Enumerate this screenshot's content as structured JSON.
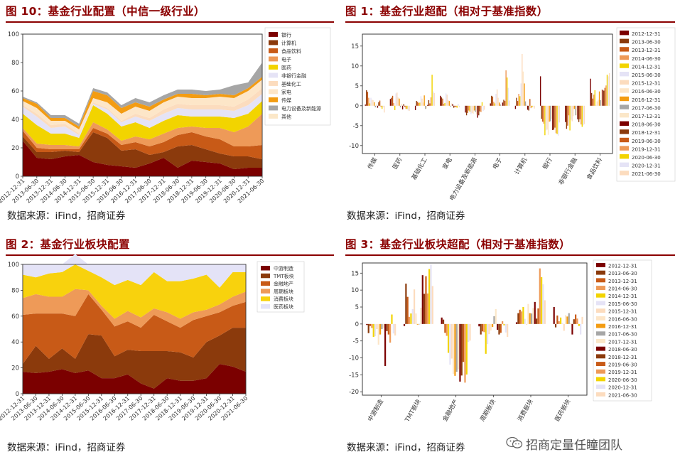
{
  "panels": {
    "p10": {
      "title": "图 10：基金行业配置（中信一级行业）",
      "source": "数据来源：iFind，招商证券"
    },
    "p1": {
      "title": "图 1：基金行业超配（相对于基准指数）",
      "source": "数据来源：iFind，招商证券"
    },
    "p2": {
      "title": "图 2：基金行业板块配置",
      "source": "数据来源：iFind，招商证券"
    },
    "p3": {
      "title": "图 3：基金行业板块超配（相对于基准指数）",
      "source": "数据来源：iFind，招商证券"
    }
  },
  "watermark": "招商定量任瞳团队",
  "colors": {
    "title": "#8b0000",
    "palette": [
      "#7b0000",
      "#8b3a0c",
      "#c85a17",
      "#ee9a58",
      "#f2d400",
      "#e5e3f6",
      "#fcdcbe",
      "#fde6c8",
      "#f39c12",
      "#a6a6a6",
      "#fbe7c8"
    ],
    "sector_palette": [
      "#7b0000",
      "#8b3a0c",
      "#c85a17",
      "#ee9a58",
      "#f8d20d",
      "#e4e3f7"
    ]
  },
  "chart_data": [
    {
      "id": "fig10",
      "type": "area",
      "stacked": true,
      "ylim": [
        0,
        100
      ],
      "yticks": [
        0,
        20,
        40,
        60,
        80,
        100
      ],
      "legend_position": "upper-right",
      "x": [
        "2012-12-31",
        "2013-06-30",
        "2013-12-31",
        "2014-06-30",
        "2014-12-31",
        "2015-06-30",
        "2015-12-31",
        "2016-06-30",
        "2016-12-31",
        "2017-06-30",
        "2017-12-31",
        "2018-06-30",
        "2018-12-31",
        "2019-06-30",
        "2019-12-31",
        "2020-06-30",
        "2020-12-31",
        "2021-06-30"
      ],
      "series": [
        {
          "name": "银行",
          "values": [
            25,
            13,
            12,
            14,
            15,
            10,
            8,
            7,
            6,
            9,
            13,
            6,
            11,
            10,
            9,
            5,
            6,
            6
          ]
        },
        {
          "name": "计算机",
          "values": [
            3,
            4,
            5,
            4,
            2,
            21,
            19,
            11,
            13,
            6,
            4,
            15,
            11,
            9,
            7,
            9,
            8,
            6
          ]
        },
        {
          "name": "食品饮料",
          "values": [
            4,
            3,
            2,
            1,
            2,
            3,
            3,
            4,
            5,
            6,
            7,
            8,
            9,
            9,
            10,
            7,
            7,
            10
          ]
        },
        {
          "name": "电子",
          "values": [
            2,
            3,
            3,
            3,
            2,
            4,
            3,
            3,
            4,
            5,
            6,
            5,
            4,
            6,
            8,
            10,
            14,
            22
          ]
        },
        {
          "name": "医药",
          "values": [
            10,
            13,
            8,
            8,
            6,
            12,
            11,
            10,
            10,
            8,
            9,
            9,
            7,
            8,
            8,
            10,
            9,
            9
          ]
        },
        {
          "name": "非银行金融",
          "values": [
            5,
            6,
            4,
            5,
            2,
            1,
            3,
            3,
            4,
            5,
            5,
            5,
            5,
            5,
            5,
            5,
            6,
            5
          ]
        },
        {
          "name": "基础化工",
          "values": [
            1,
            2,
            2,
            2,
            1,
            1,
            1,
            1,
            2,
            2,
            3,
            3,
            3,
            3,
            3,
            3,
            4,
            4
          ]
        },
        {
          "name": "家电",
          "values": [
            3,
            4,
            3,
            2,
            3,
            3,
            4,
            5,
            5,
            5,
            5,
            5,
            5,
            5,
            6,
            6,
            6,
            6
          ]
        },
        {
          "name": "传媒",
          "values": [
            2,
            3,
            2,
            2,
            2,
            5,
            5,
            4,
            3,
            3,
            2,
            2,
            3,
            2,
            2,
            2,
            2,
            2
          ]
        },
        {
          "name": "电力设备及新能源",
          "values": [
            1,
            1,
            2,
            2,
            2,
            2,
            2,
            2,
            3,
            3,
            3,
            3,
            3,
            3,
            3,
            7,
            4,
            10
          ]
        },
        {
          "name": "其他",
          "values": [
            0,
            0,
            0,
            0,
            0,
            0,
            0,
            0,
            0,
            0,
            0,
            0,
            0,
            0,
            0,
            0,
            0,
            0
          ]
        }
      ]
    },
    {
      "id": "fig1",
      "type": "bar",
      "ylim": [
        -12,
        18
      ],
      "yticks": [
        -10,
        -5,
        0,
        5,
        10,
        15
      ],
      "categories": [
        "传媒",
        "医药",
        "基础化工",
        "家电",
        "电力设备及新能源",
        "电子",
        "计算机",
        "银行",
        "非银行金融",
        "食品饮料"
      ],
      "series_names": [
        "2012-12-31",
        "2013-06-30",
        "2013-12-31",
        "2014-06-30",
        "2014-12-31",
        "2015-06-30",
        "2015-12-31",
        "2016-06-30",
        "2016-12-31",
        "2017-06-30",
        "2017-12-31",
        "2018-06-30",
        "2018-12-31",
        "2019-06-30",
        "2019-12-31",
        "2020-06-30",
        "2020-12-31",
        "2021-06-30"
      ],
      "values": [
        [
          0.3,
          3.9,
          3.5,
          2.0,
          0.6,
          2.0,
          1.5,
          1.4,
          0.9,
          -0.4,
          0.3,
          -0.5,
          0.9,
          1.3,
          -0.3,
          -0.8,
          -0.4,
          -1.7
        ],
        [
          1.7,
          2.0,
          2.5,
          0.7,
          -1.1,
          3.1,
          3.3,
          2.1,
          1.8,
          -0.4,
          0.5,
          -0.9,
          0.4,
          -0.3,
          -0.8,
          -0.8,
          -1.2,
          -1.3
        ],
        [
          -1.1,
          1.2,
          1.0,
          0.7,
          0.8,
          2.4,
          1.8,
          0.8,
          2.6,
          -0.8,
          -0.7,
          0.2,
          1.4,
          0.6,
          2.1,
          7.8,
          3.6,
          3.2
        ],
        [
          2.5,
          2.1,
          1.8,
          0.5,
          0.7,
          3.1,
          2.8,
          1.4,
          1.2,
          -0.2,
          0.6,
          0.4,
          -0.5,
          -0.3,
          -0.4,
          -0.5,
          0.5,
          -0.4
        ],
        [
          -1.7,
          -2.4,
          -1.8,
          -1.2,
          -1.5,
          -2.1,
          -1.8,
          -2.0,
          -1.2,
          -1.6,
          -2.2,
          -3.0,
          -2.4,
          -1.4,
          -1.6,
          0.9,
          -1.3,
          -1.0
        ],
        [
          0.6,
          2.5,
          2.3,
          1.0,
          0.6,
          3.0,
          4.1,
          2.0,
          0.8,
          0.3,
          0.1,
          0.8,
          1.5,
          1.2,
          8.9,
          7.1,
          4.5,
          1.3
        ],
        [
          -0.8,
          2.0,
          1.2,
          3.0,
          2.4,
          5.6,
          13.0,
          8.6,
          5.6,
          1.1,
          0.3,
          -1.0,
          -1.2,
          1.7,
          -0.6,
          -0.4,
          -0.2,
          -0.7
        ],
        [
          7.4,
          -3.3,
          -4.0,
          -4.5,
          -7.4,
          -6.2,
          -6.0,
          -7.3,
          -4.0,
          -3.9,
          -3.3,
          -6.1,
          -6.0,
          -5.5,
          -6.9,
          -7.1,
          -7.5,
          -4.2
        ],
        [
          -4.1,
          -5.8,
          -5.0,
          -2.4,
          -6.2,
          -3.5,
          -3.9,
          -2.6,
          -0.8,
          -2.4,
          -2.4,
          -3.4,
          -4.1,
          -3.4,
          -4.7,
          -5.3,
          -4.9,
          -4.6
        ],
        [
          6.8,
          3.2,
          1.8,
          2.8,
          3.9,
          0.2,
          1.1,
          1.5,
          3.6,
          1.4,
          4.1,
          4.0,
          3.8,
          4.5,
          5.1,
          7.8,
          7.4,
          8.2
        ]
      ]
    },
    {
      "id": "fig2",
      "type": "area",
      "stacked": true,
      "ylim": [
        0,
        100
      ],
      "yticks": [
        0,
        20,
        40,
        60,
        80,
        100
      ],
      "legend_position": "upper-right",
      "x": [
        "2012-12-31",
        "2013-06-30",
        "2013-12-31",
        "2014-06-30",
        "2014-12-31",
        "2015-06-30",
        "2015-12-31",
        "2016-06-30",
        "2016-12-31",
        "2017-06-30",
        "2017-12-31",
        "2018-06-30",
        "2018-12-31",
        "2019-06-30",
        "2019-12-31",
        "2020-06-30",
        "2020-12-31",
        "2021-06-30"
      ],
      "series": [
        {
          "name": "中游制造",
          "values": [
            17,
            16,
            17,
            19,
            16,
            18,
            12,
            12,
            15,
            8,
            4,
            12,
            10,
            10,
            12,
            23,
            21,
            17
          ]
        },
        {
          "name": "TMT板块",
          "values": [
            6,
            21,
            10,
            16,
            11,
            28,
            33,
            17,
            19,
            25,
            29,
            21,
            22,
            18,
            28,
            22,
            30,
            34
          ]
        },
        {
          "name": "金融地产",
          "values": [
            38,
            25,
            35,
            27,
            33,
            31,
            20,
            23,
            22,
            18,
            28,
            23,
            19,
            29,
            20,
            18,
            17,
            20
          ]
        },
        {
          "name": "周期板块",
          "values": [
            13,
            15,
            13,
            13,
            21,
            3,
            3,
            6,
            8,
            8,
            5,
            7,
            7,
            6,
            5,
            6,
            7,
            8
          ]
        },
        {
          "name": "消费板块",
          "values": [
            18,
            13,
            18,
            19,
            19,
            15,
            22,
            26,
            24,
            25,
            28,
            24,
            29,
            26,
            27,
            13,
            19,
            15
          ]
        },
        {
          "name": "医药板块",
          "values": [
            8,
            10,
            7,
            6,
            8,
            5,
            10,
            16,
            12,
            16,
            6,
            13,
            13,
            11,
            8,
            18,
            6,
            6
          ]
        }
      ]
    },
    {
      "id": "fig3",
      "type": "bar",
      "ylim": [
        -21,
        18
      ],
      "yticks": [
        -20,
        -15,
        -10,
        -5,
        0,
        5,
        10,
        15
      ],
      "categories": [
        "中游制造",
        "TMT板块",
        "金融地产",
        "周期板块",
        "消费板块",
        "医药板块"
      ],
      "series_names": [
        "2012-12-31",
        "2013-06-30",
        "2013-12-31",
        "2014-06-30",
        "2014-12-31",
        "2015-06-30",
        "2015-12-31",
        "2016-06-30",
        "2016-12-31",
        "2017-06-30",
        "2017-12-31",
        "2018-06-30",
        "2018-12-31",
        "2019-06-30",
        "2019-12-31",
        "2020-06-30",
        "2020-12-31",
        "2021-06-30"
      ],
      "values": [
        [
          -0.3,
          -2.7,
          -0.6,
          -1.2,
          -3.8,
          -3.6,
          -1.5,
          -6.1,
          -3.1,
          -1.5,
          -1.2,
          -12.4,
          -2.1,
          -3.1,
          -5.5,
          2.8,
          -2.8,
          -3.4
        ],
        [
          -0.6,
          11.9,
          8.0,
          2.1,
          3.1,
          4.4,
          10.2,
          3.1,
          -0.2,
          -0.1,
          4.8,
          14.4,
          8.9,
          14.1,
          9.0,
          16.2,
          17.5,
          11.2
        ],
        [
          1.9,
          1.3,
          -2.6,
          -3.5,
          -8.5,
          -12.0,
          -10.2,
          -14.7,
          -15.3,
          -14.1,
          -13.4,
          -17.0,
          -15.2,
          -11.2,
          -17.3,
          -14.9,
          -5.3,
          -4.9
        ],
        [
          -0.7,
          -3.1,
          -2.2,
          -2.4,
          -8.8,
          -5.9,
          -3.0,
          -1.9,
          -0.9,
          2.3,
          4.4,
          -1.7,
          -3.1,
          -2.6,
          0.8,
          -0.4,
          -2.5,
          -3.8
        ],
        [
          0.5,
          3.2,
          4.2,
          3.7,
          5.0,
          1.5,
          -0.2,
          5.9,
          3.2,
          3.1,
          4.7,
          6.5,
          1.6,
          4.6,
          16.4,
          13.8,
          11.7,
          7.0
        ],
        [
          5.0,
          -1.0,
          2.5,
          0.8,
          1.9,
          0.3,
          -2.0,
          2.6,
          2.2,
          3.2,
          0.3,
          -3.1,
          1.4,
          2.8,
          1.6,
          -0.6,
          -3.1,
          2.1
        ]
      ]
    }
  ]
}
